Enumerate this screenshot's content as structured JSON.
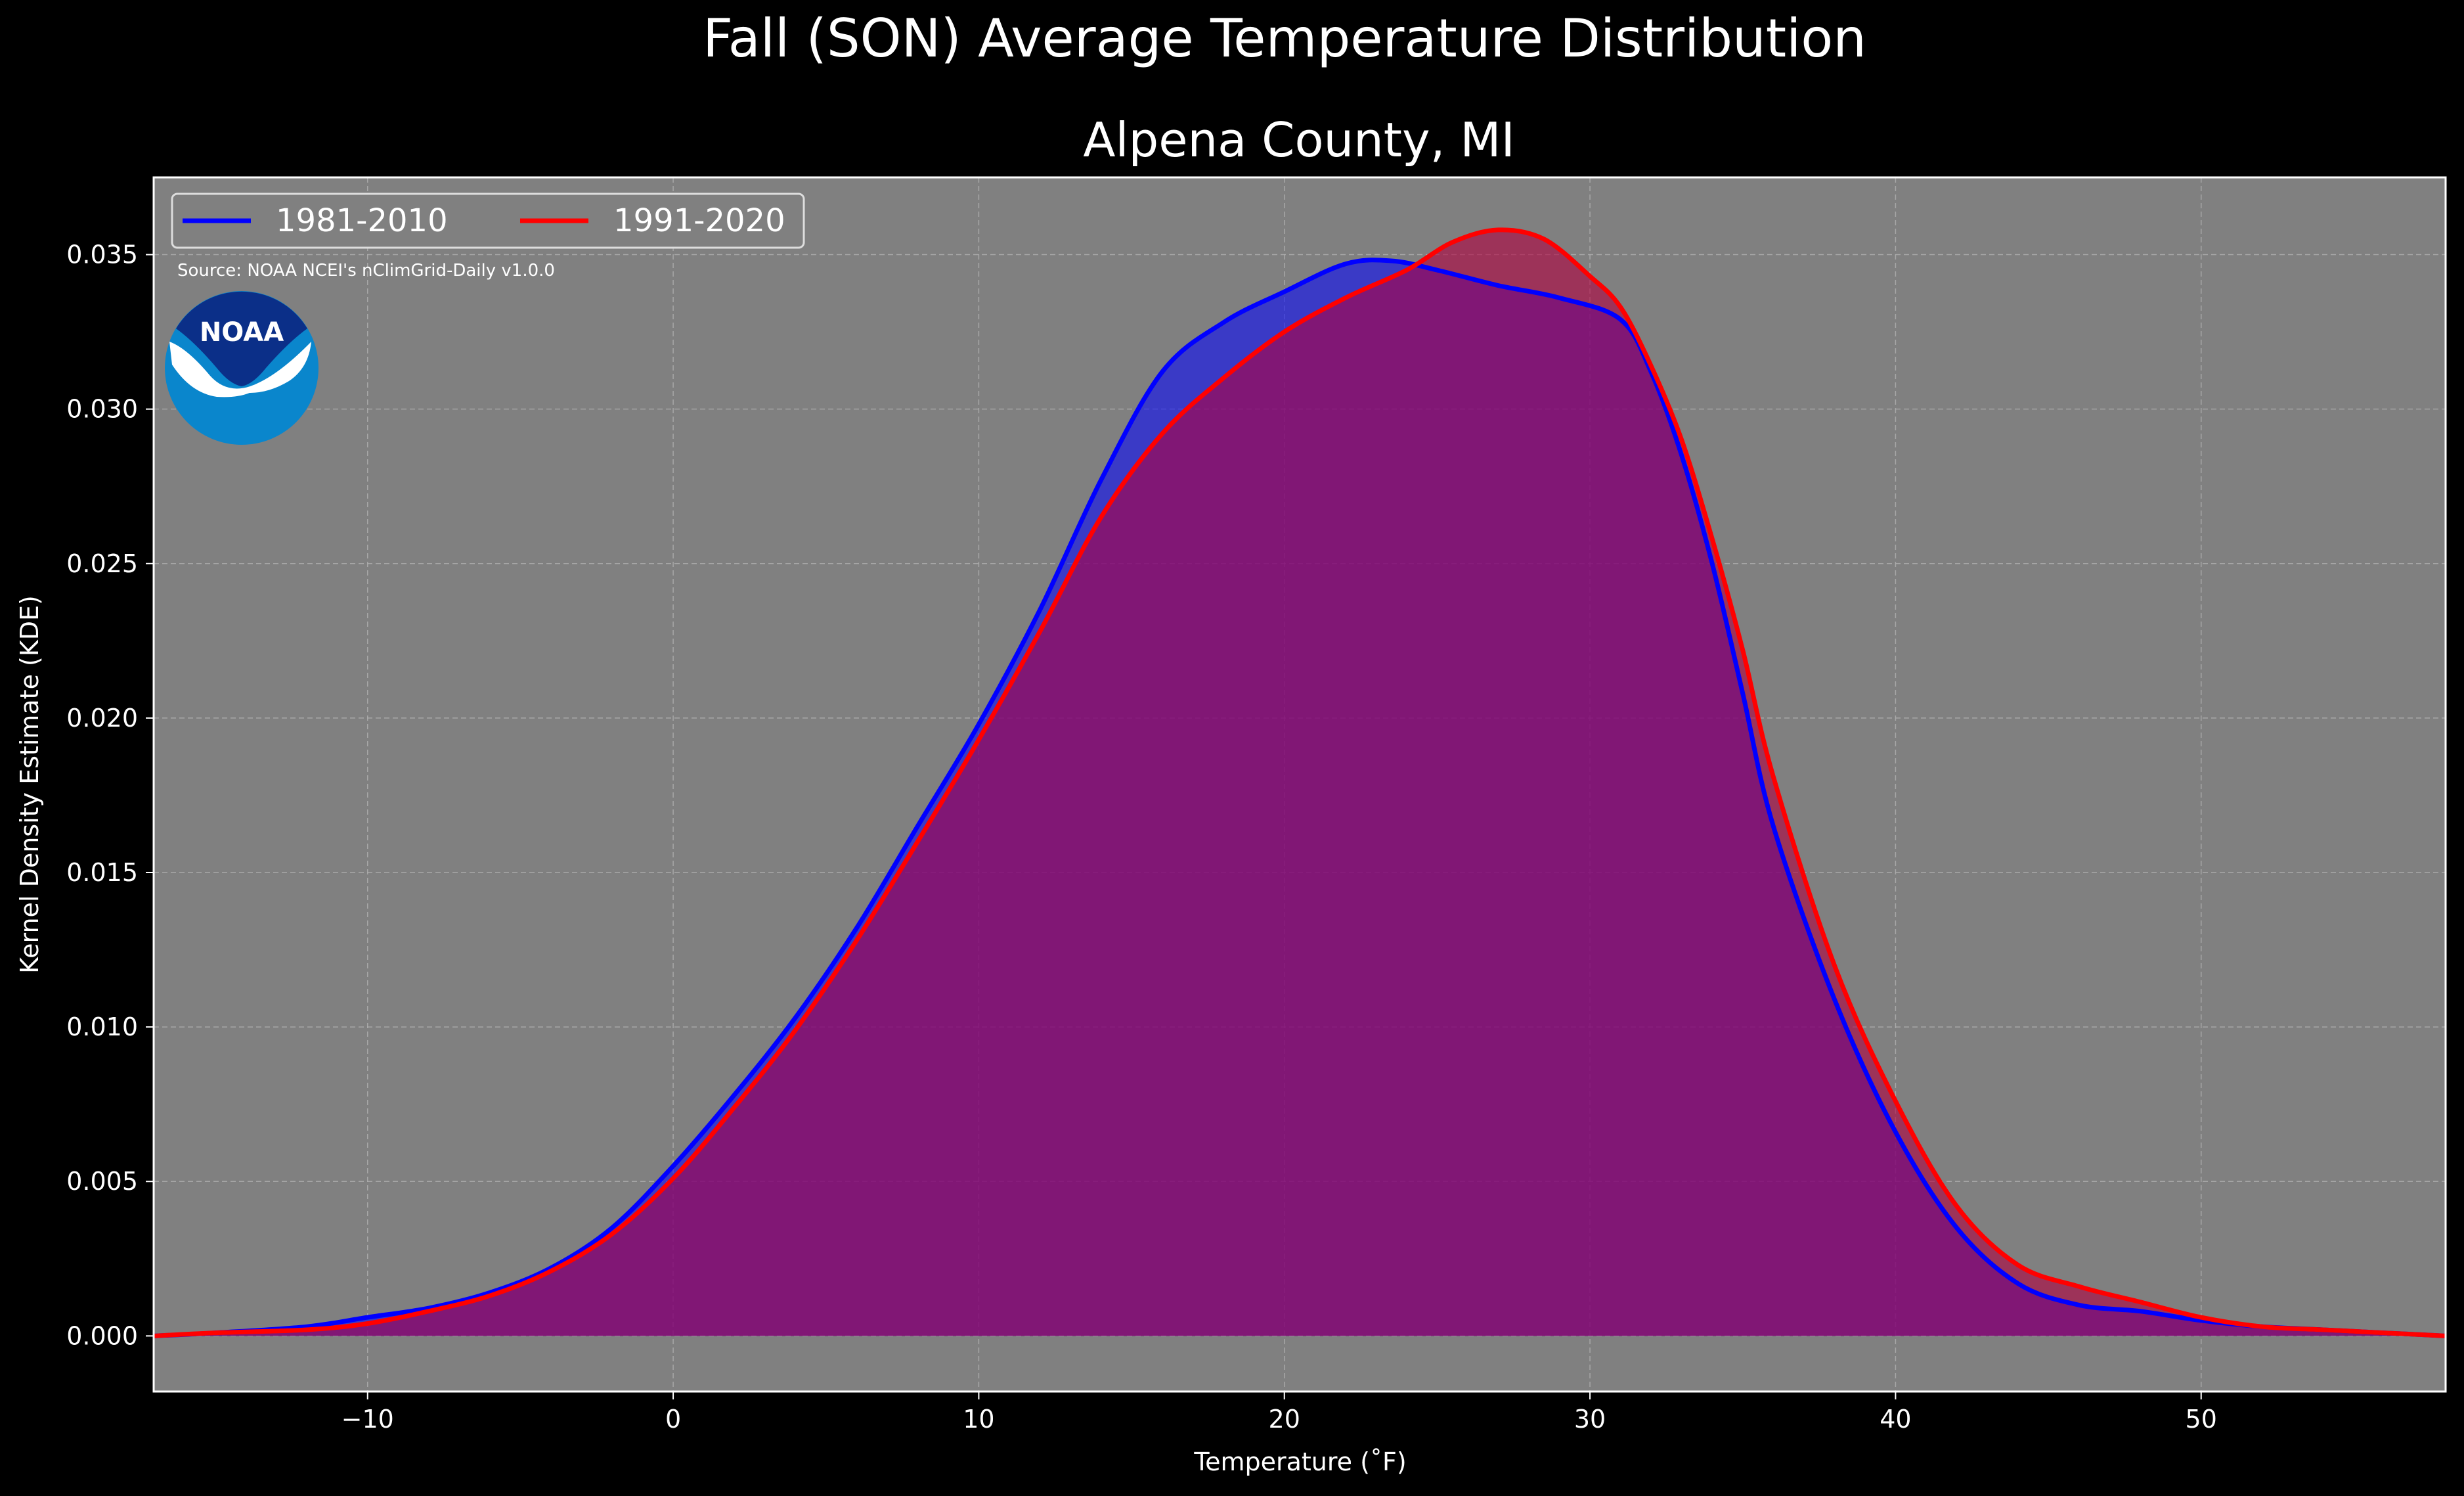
{
  "chart_data": {
    "type": "area",
    "title": "Fall (SON) Average Temperature Distribution",
    "subtitle": "Alpena County, MI",
    "xlabel": "Temperature ($^\\circ$F)",
    "xlabel_display": "Temperature (˚F)",
    "ylabel": "Kernel Density Estimate (KDE)",
    "xlim": [
      -17,
      58
    ],
    "ylim": [
      -0.0018,
      0.0375
    ],
    "x_ticks": [
      -10,
      0,
      10,
      20,
      30,
      40,
      50
    ],
    "x_tick_labels": [
      "−10",
      "0",
      "10",
      "20",
      "30",
      "40",
      "50"
    ],
    "y_ticks": [
      0.0,
      0.005,
      0.01,
      0.015,
      0.02,
      0.025,
      0.03,
      0.035
    ],
    "y_tick_labels": [
      "0.000",
      "0.005",
      "0.010",
      "0.015",
      "0.020",
      "0.025",
      "0.030",
      "0.035"
    ],
    "grid": true,
    "legend_position": "top-left",
    "source_note": "Source: NOAA NCEI's nClimGrid-Daily v1.0.0",
    "logo_text": "NOAA",
    "series": [
      {
        "name": "1981-2010",
        "color": "#0000ff",
        "fill_color": "#0000ff",
        "x": [
          -17,
          -15,
          -12,
          -10,
          -8,
          -6,
          -4,
          -2,
          0,
          2,
          4,
          6,
          8,
          10,
          12,
          14,
          16,
          18,
          20,
          22,
          23.5,
          25,
          27,
          29,
          31,
          32,
          33,
          34,
          35,
          36,
          38,
          40,
          42,
          44,
          46,
          48,
          50,
          52,
          54,
          56,
          58
        ],
        "y": [
          0.0,
          0.0001,
          0.0003,
          0.0006,
          0.0009,
          0.0014,
          0.0022,
          0.0035,
          0.0055,
          0.0078,
          0.0103,
          0.0132,
          0.0165,
          0.0198,
          0.0235,
          0.0277,
          0.0312,
          0.0328,
          0.0338,
          0.0347,
          0.0348,
          0.0345,
          0.034,
          0.0336,
          0.0329,
          0.0312,
          0.0285,
          0.025,
          0.0208,
          0.0165,
          0.0109,
          0.0066,
          0.0035,
          0.0017,
          0.001,
          0.0008,
          0.0005,
          0.0003,
          0.0002,
          0.0001,
          0.0
        ]
      },
      {
        "name": "1991-2020",
        "color": "#ff0000",
        "fill_color": "#b00040",
        "x": [
          -17,
          -15,
          -12,
          -10,
          -8,
          -6,
          -4,
          -2,
          0,
          2,
          4,
          6,
          8,
          10,
          12,
          14,
          16,
          18,
          20,
          22,
          24,
          25.5,
          27,
          28.5,
          30,
          31,
          32,
          33,
          34,
          35,
          36,
          38,
          40,
          42,
          44,
          46,
          48,
          50,
          52,
          54,
          56,
          58
        ],
        "y": [
          0.0,
          0.0001,
          0.0002,
          0.0004,
          0.0008,
          0.0013,
          0.0021,
          0.0033,
          0.0051,
          0.0074,
          0.0099,
          0.0128,
          0.016,
          0.0193,
          0.0228,
          0.0265,
          0.0292,
          0.031,
          0.0325,
          0.0336,
          0.0345,
          0.0354,
          0.0358,
          0.0355,
          0.0343,
          0.0333,
          0.0314,
          0.029,
          0.0258,
          0.0222,
          0.0181,
          0.012,
          0.0076,
          0.0042,
          0.0023,
          0.0016,
          0.0011,
          0.0006,
          0.0003,
          0.0002,
          0.0001,
          0.0
        ]
      }
    ]
  }
}
